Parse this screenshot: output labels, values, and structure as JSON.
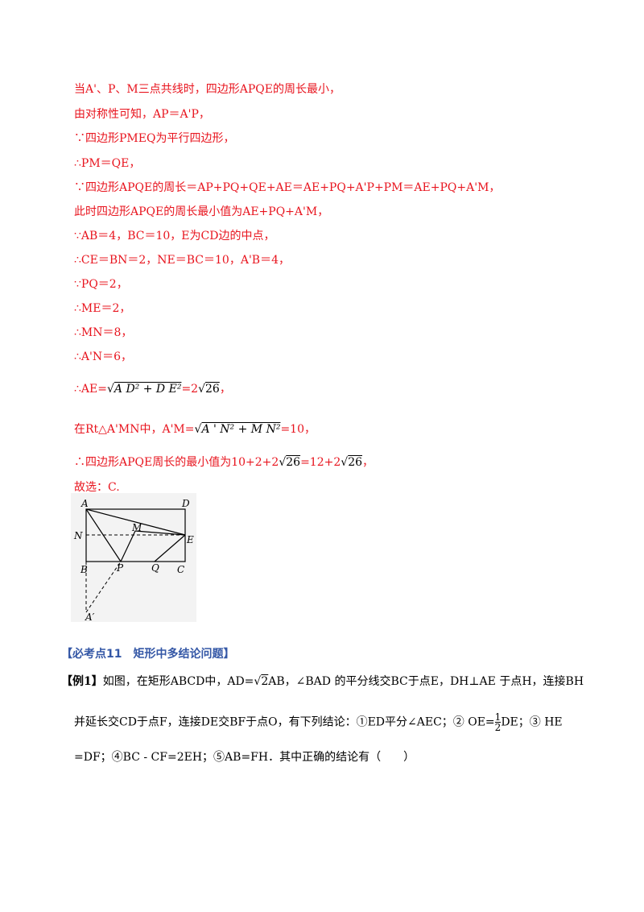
{
  "solution_lines": [
    "当A'、P、M三点共线时，四边形APQE的周长最小，",
    "由对称性可知，AP＝A'P，",
    "∵四边形PMEQ为平行四边形，",
    "∴PM＝QE，",
    "∵四边形APQE的周长＝AP+PQ+QE+AE＝AE+PQ+A'P+PM＝AE+PQ+A'M，",
    "此时四边形APQE的周长最小值为AE+PQ+A'M，",
    "∵AB＝4，BC＝10，E为CD边的中点，",
    "∴CE＝BN＝2，NE＝BC＝10，A'B＝4，",
    "∵PQ＝2，",
    "∴ME＝2，",
    "∴MN＝8，",
    "∴A'N＝6，"
  ],
  "formula_ae": {
    "lead": "∴AE=",
    "radicand": "A D² + D E²",
    "eq": "=2",
    "root": "26",
    "tail": "，"
  },
  "formula_am": {
    "lead": "在Rt△A'MN中，A'M=",
    "radicand": "A ' N² + M N²",
    "eq": "=10，"
  },
  "formula_min": {
    "lead": "∴四边形APQE周长的最小值为10+2+2",
    "root1": "26",
    "mid": "=12+2",
    "root2": "26",
    "tail": "，"
  },
  "answer": "故选：C.",
  "figure_labels": {
    "A": "A",
    "D": "D",
    "N": "N",
    "M": "M",
    "E": "E",
    "B": "B",
    "P": "P",
    "Q": "Q",
    "C": "C",
    "A2": "A′"
  },
  "section_title": "【必考点11　矩形中多结论问题】",
  "example": {
    "tag": "【例1】",
    "line1a": "如图，在矩形ABCD中，AD=",
    "line1root": "2",
    "line1b": "AB，∠BAD 的平分线交BC于点E，DH⊥AE 于点H，连接BH",
    "line2a": "并延长交CD于点F，连接DE交BF于点O，有下列结论：①ED平分∠AEC；② OE=",
    "frac_num": "1",
    "frac_den": "2",
    "line2b": "DE；③ HE",
    "line3": "=DF；④BC - CF=2EH；⑤AB=FH．其中正确的结论有（　　）"
  },
  "colors": {
    "solution": "#e8141e",
    "title": "#3457a6"
  }
}
